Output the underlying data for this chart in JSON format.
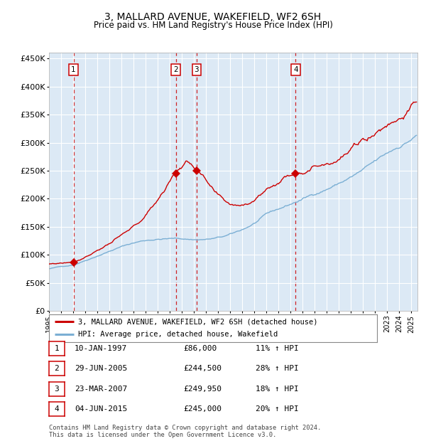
{
  "title": "3, MALLARD AVENUE, WAKEFIELD, WF2 6SH",
  "subtitle": "Price paid vs. HM Land Registry's House Price Index (HPI)",
  "bg_color": "#dce9f5",
  "red_color": "#cc0000",
  "blue_color": "#7bafd4",
  "ylim": [
    0,
    460000
  ],
  "yticks": [
    0,
    50000,
    100000,
    150000,
    200000,
    250000,
    300000,
    350000,
    400000,
    450000
  ],
  "ytick_labels": [
    "£0",
    "£50K",
    "£100K",
    "£150K",
    "£200K",
    "£250K",
    "£300K",
    "£350K",
    "£400K",
    "£450K"
  ],
  "sales": [
    {
      "date": "10-JAN-1997",
      "price": 86000,
      "label": "1",
      "pct": "11%",
      "date_num": 1997.03
    },
    {
      "date": "29-JUN-2005",
      "price": 244500,
      "label": "2",
      "pct": "28%",
      "date_num": 2005.49
    },
    {
      "date": "23-MAR-2007",
      "price": 249950,
      "label": "3",
      "pct": "18%",
      "date_num": 2007.22
    },
    {
      "date": "04-JUN-2015",
      "price": 245000,
      "label": "4",
      "pct": "20%",
      "date_num": 2015.42
    }
  ],
  "legend_line1": "3, MALLARD AVENUE, WAKEFIELD, WF2 6SH (detached house)",
  "legend_line2": "HPI: Average price, detached house, Wakefield",
  "footer1": "Contains HM Land Registry data © Crown copyright and database right 2024.",
  "footer2": "This data is licensed under the Open Government Licence v3.0.",
  "xmin": 1995,
  "xmax": 2025.5
}
